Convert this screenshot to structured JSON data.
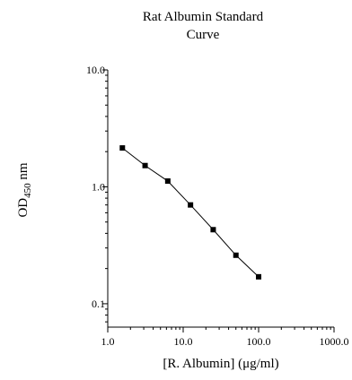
{
  "chart_data": {
    "type": "line",
    "title_lines": [
      "Rat Albumin Standard",
      "Curve"
    ],
    "xlabel": "[R. Albumin] (μg/ml)",
    "ylabel_main": "OD",
    "ylabel_sub": "450",
    "ylabel_unit": " nm",
    "x_scale": "log",
    "y_scale": "log",
    "xlim": [
      1.0,
      1000.0
    ],
    "ylim": [
      0.0631,
      10.0
    ],
    "x_ticks": [
      1.0,
      10.0,
      100.0,
      1000.0
    ],
    "x_tick_labels": [
      "1.0",
      "10.0",
      "100.0",
      "1000.0"
    ],
    "y_ticks": [
      0.1,
      1.0,
      10.0
    ],
    "y_tick_labels": [
      "0.1",
      "1.0",
      "10.0"
    ],
    "grid": false,
    "series": [
      {
        "x": [
          1.5625,
          3.125,
          6.25,
          12.5,
          25,
          50,
          100
        ],
        "y": [
          2.15,
          1.52,
          1.12,
          0.7,
          0.43,
          0.26,
          0.17
        ]
      }
    ]
  }
}
